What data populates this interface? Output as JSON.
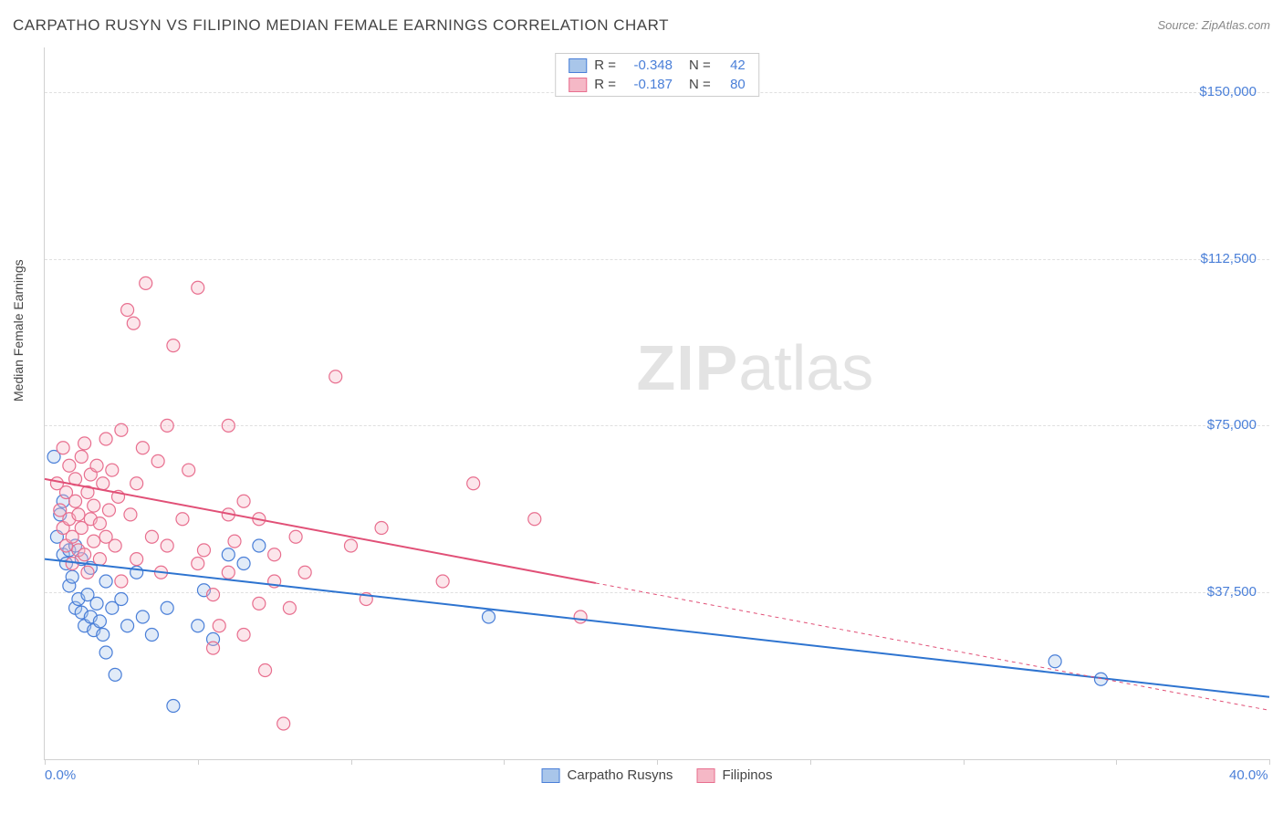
{
  "title": "CARPATHO RUSYN VS FILIPINO MEDIAN FEMALE EARNINGS CORRELATION CHART",
  "source": "Source: ZipAtlas.com",
  "ylabel": "Median Female Earnings",
  "watermark_bold": "ZIP",
  "watermark_rest": "atlas",
  "chart": {
    "type": "scatter",
    "background_color": "#ffffff",
    "grid_color": "#e0e0e0",
    "border_color": "#d0d0d0",
    "text_color": "#444444",
    "tick_label_color": "#4a7fd8",
    "title_fontsize": 17,
    "label_fontsize": 14,
    "tick_fontsize": 15,
    "marker_radius": 7,
    "marker_fill_opacity": 0.35,
    "line_width": 2,
    "xlim": [
      0,
      40
    ],
    "ylim": [
      0,
      160000
    ],
    "x_ticks": [
      0,
      5,
      10,
      15,
      20,
      25,
      30,
      35,
      40
    ],
    "x_tick_labels_shown": {
      "0": "0.0%",
      "40": "40.0%"
    },
    "y_ticks": [
      37500,
      75000,
      112500,
      150000
    ],
    "y_tick_labels": [
      "$37,500",
      "$75,000",
      "$112,500",
      "$150,000"
    ],
    "series": [
      {
        "name": "Carpatho Rusyns",
        "color_fill": "#a9c6ea",
        "color_stroke": "#4a7fd8",
        "line_color": "#2e74d0",
        "R": "-0.348",
        "N": "42",
        "trend": {
          "x1": 0,
          "y1": 45000,
          "x2": 40,
          "y2": 14000,
          "solid_until_x": 40
        },
        "points": [
          [
            0.3,
            68000
          ],
          [
            0.4,
            50000
          ],
          [
            0.5,
            55000
          ],
          [
            0.6,
            46000
          ],
          [
            0.6,
            58000
          ],
          [
            0.7,
            44000
          ],
          [
            0.8,
            47000
          ],
          [
            0.8,
            39000
          ],
          [
            0.9,
            41000
          ],
          [
            1.0,
            34000
          ],
          [
            1.0,
            48000
          ],
          [
            1.1,
            36000
          ],
          [
            1.2,
            33000
          ],
          [
            1.2,
            45000
          ],
          [
            1.3,
            30000
          ],
          [
            1.4,
            37000
          ],
          [
            1.5,
            32000
          ],
          [
            1.5,
            43000
          ],
          [
            1.6,
            29000
          ],
          [
            1.7,
            35000
          ],
          [
            1.8,
            31000
          ],
          [
            1.9,
            28000
          ],
          [
            2.0,
            40000
          ],
          [
            2.0,
            24000
          ],
          [
            2.2,
            34000
          ],
          [
            2.3,
            19000
          ],
          [
            2.5,
            36000
          ],
          [
            2.7,
            30000
          ],
          [
            3.0,
            42000
          ],
          [
            3.2,
            32000
          ],
          [
            3.5,
            28000
          ],
          [
            4.0,
            34000
          ],
          [
            4.2,
            12000
          ],
          [
            5.0,
            30000
          ],
          [
            5.2,
            38000
          ],
          [
            5.5,
            27000
          ],
          [
            6.0,
            46000
          ],
          [
            6.5,
            44000
          ],
          [
            7.0,
            48000
          ],
          [
            14.5,
            32000
          ],
          [
            33.0,
            22000
          ],
          [
            34.5,
            18000
          ]
        ]
      },
      {
        "name": "Filipinos",
        "color_fill": "#f5b8c6",
        "color_stroke": "#e86f8f",
        "line_color": "#e15077",
        "R": "-0.187",
        "N": "80",
        "trend": {
          "x1": 0,
          "y1": 63000,
          "x2": 40,
          "y2": 11000,
          "solid_until_x": 18
        },
        "points": [
          [
            0.4,
            62000
          ],
          [
            0.5,
            56000
          ],
          [
            0.6,
            70000
          ],
          [
            0.6,
            52000
          ],
          [
            0.7,
            60000
          ],
          [
            0.7,
            48000
          ],
          [
            0.8,
            66000
          ],
          [
            0.8,
            54000
          ],
          [
            0.9,
            50000
          ],
          [
            0.9,
            44000
          ],
          [
            1.0,
            58000
          ],
          [
            1.0,
            63000
          ],
          [
            1.1,
            47000
          ],
          [
            1.1,
            55000
          ],
          [
            1.2,
            52000
          ],
          [
            1.2,
            68000
          ],
          [
            1.3,
            46000
          ],
          [
            1.3,
            71000
          ],
          [
            1.4,
            60000
          ],
          [
            1.4,
            42000
          ],
          [
            1.5,
            54000
          ],
          [
            1.5,
            64000
          ],
          [
            1.6,
            49000
          ],
          [
            1.6,
            57000
          ],
          [
            1.7,
            66000
          ],
          [
            1.8,
            53000
          ],
          [
            1.8,
            45000
          ],
          [
            1.9,
            62000
          ],
          [
            2.0,
            72000
          ],
          [
            2.0,
            50000
          ],
          [
            2.1,
            56000
          ],
          [
            2.2,
            65000
          ],
          [
            2.3,
            48000
          ],
          [
            2.4,
            59000
          ],
          [
            2.5,
            74000
          ],
          [
            2.5,
            40000
          ],
          [
            2.7,
            101000
          ],
          [
            2.8,
            55000
          ],
          [
            2.9,
            98000
          ],
          [
            3.0,
            62000
          ],
          [
            3.0,
            45000
          ],
          [
            3.2,
            70000
          ],
          [
            3.3,
            107000
          ],
          [
            3.5,
            50000
          ],
          [
            3.7,
            67000
          ],
          [
            3.8,
            42000
          ],
          [
            4.0,
            75000
          ],
          [
            4.0,
            48000
          ],
          [
            4.2,
            93000
          ],
          [
            4.5,
            54000
          ],
          [
            4.7,
            65000
          ],
          [
            5.0,
            106000
          ],
          [
            5.0,
            44000
          ],
          [
            5.2,
            47000
          ],
          [
            5.5,
            37000
          ],
          [
            5.5,
            25000
          ],
          [
            5.7,
            30000
          ],
          [
            6.0,
            55000
          ],
          [
            6.0,
            42000
          ],
          [
            6.0,
            75000
          ],
          [
            6.2,
            49000
          ],
          [
            6.5,
            58000
          ],
          [
            6.5,
            28000
          ],
          [
            7.0,
            54000
          ],
          [
            7.0,
            35000
          ],
          [
            7.2,
            20000
          ],
          [
            7.5,
            40000
          ],
          [
            7.5,
            46000
          ],
          [
            7.8,
            8000
          ],
          [
            8.0,
            34000
          ],
          [
            8.2,
            50000
          ],
          [
            8.5,
            42000
          ],
          [
            9.5,
            86000
          ],
          [
            10.0,
            48000
          ],
          [
            10.5,
            36000
          ],
          [
            11.0,
            52000
          ],
          [
            13.0,
            40000
          ],
          [
            14.0,
            62000
          ],
          [
            16.0,
            54000
          ],
          [
            17.5,
            32000
          ]
        ]
      }
    ]
  }
}
